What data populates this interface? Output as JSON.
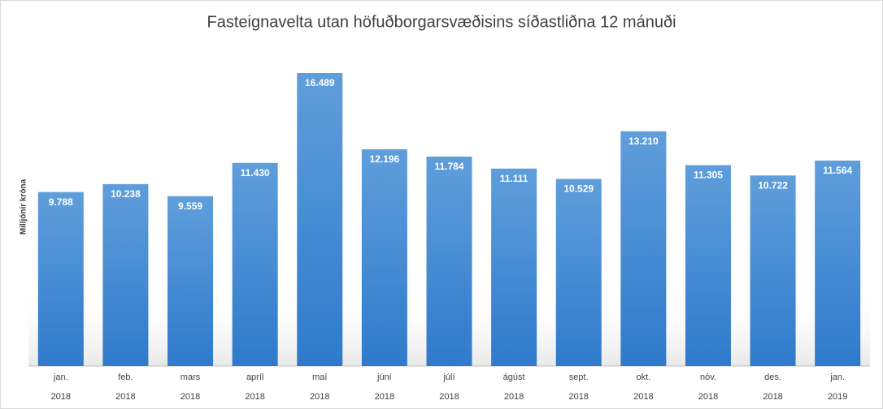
{
  "chart_data": {
    "type": "bar",
    "title": "Fasteignavelta utan höfuðborgarsvæðisins síðastliðna 12 mánuði",
    "y_label": "Milljónir króna",
    "categories": [
      "jan.",
      "feb.",
      "mars",
      "apríl",
      "maí",
      "júní",
      "júlí",
      "ágúst",
      "sept.",
      "okt.",
      "nóv.",
      "des.",
      "jan."
    ],
    "category_years": [
      "2018",
      "2018",
      "2018",
      "2018",
      "2018",
      "2018",
      "2018",
      "2018",
      "2018",
      "2018",
      "2018",
      "2018",
      "2019"
    ],
    "values": [
      9788,
      10238,
      9559,
      11430,
      16489,
      12196,
      11784,
      11111,
      10529,
      13210,
      11305,
      10722,
      11564
    ],
    "value_labels": [
      "9.788",
      "10.238",
      "9.559",
      "11.430",
      "16.489",
      "12.196",
      "11.784",
      "11.111",
      "10.529",
      "13.210",
      "11.305",
      "10.722",
      "11.564"
    ],
    "color": "#4a8fd6"
  }
}
